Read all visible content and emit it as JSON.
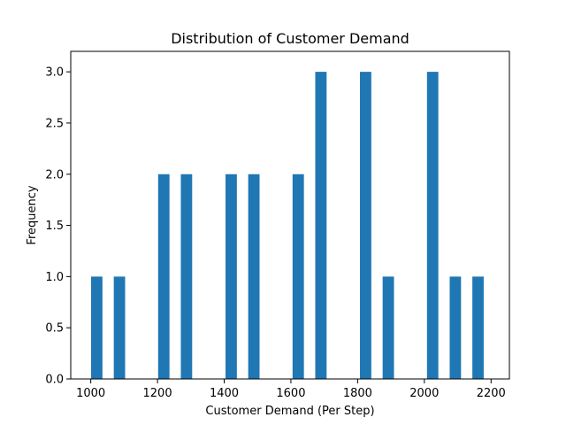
{
  "chart_data": {
    "type": "bar",
    "title": "Distribution of Customer Demand",
    "xlabel": "Customer Demand (Per Step)",
    "ylabel": "Frequency",
    "xlim": [
      940,
      2255
    ],
    "ylim": [
      0,
      3.2
    ],
    "x_ticks": [
      1000,
      1200,
      1400,
      1600,
      1800,
      2000,
      2200
    ],
    "y_ticks": [
      0.0,
      0.5,
      1.0,
      1.5,
      2.0,
      2.5,
      3.0
    ],
    "y_tick_labels": [
      "0.0",
      "0.5",
      "1.0",
      "1.5",
      "2.0",
      "2.5",
      "3.0"
    ],
    "bar_width": 34,
    "bars": [
      {
        "x": 1001,
        "value": 1
      },
      {
        "x": 1069,
        "value": 1
      },
      {
        "x": 1202,
        "value": 2
      },
      {
        "x": 1270,
        "value": 2
      },
      {
        "x": 1404,
        "value": 2
      },
      {
        "x": 1472,
        "value": 2
      },
      {
        "x": 1605,
        "value": 2
      },
      {
        "x": 1673,
        "value": 3
      },
      {
        "x": 1807,
        "value": 3
      },
      {
        "x": 1875,
        "value": 1
      },
      {
        "x": 2008,
        "value": 3
      },
      {
        "x": 2076,
        "value": 1
      },
      {
        "x": 2144,
        "value": 1
      }
    ],
    "bar_color": "#1f77b4",
    "grid": false,
    "legend": "none"
  }
}
